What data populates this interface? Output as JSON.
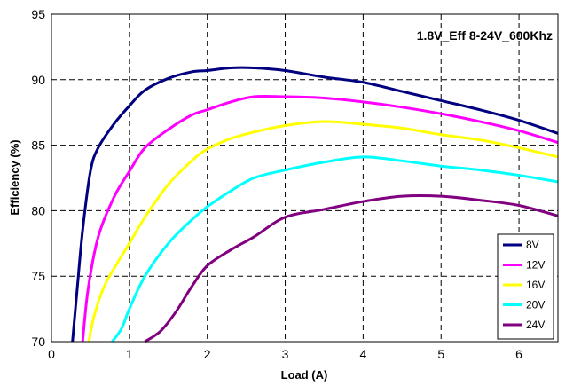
{
  "chart_data": {
    "type": "line",
    "title": "1.8V_Eff 8-24V_600Khz",
    "xlabel": "Load (A)",
    "ylabel": "Efficiency (%)",
    "xlim": [
      0,
      6.5
    ],
    "ylim": [
      70,
      95
    ],
    "x_ticks": [
      "0",
      "1",
      "2",
      "3",
      "4",
      "5",
      "6"
    ],
    "y_ticks": [
      "70",
      "75",
      "80",
      "85",
      "90",
      "95"
    ],
    "grid": true,
    "legend_position": "bottom-right",
    "series": [
      {
        "name": "8V",
        "color": "#000080",
        "points": [
          [
            0.27,
            70
          ],
          [
            0.33,
            74
          ],
          [
            0.4,
            78.5
          ],
          [
            0.5,
            83
          ],
          [
            0.6,
            84.8
          ],
          [
            0.8,
            86.6
          ],
          [
            1.0,
            88
          ],
          [
            1.2,
            89.2
          ],
          [
            1.5,
            90.1
          ],
          [
            1.8,
            90.6
          ],
          [
            2.0,
            90.7
          ],
          [
            2.3,
            90.9
          ],
          [
            2.6,
            90.9
          ],
          [
            3.0,
            90.7
          ],
          [
            3.5,
            90.2
          ],
          [
            4.0,
            89.8
          ],
          [
            4.5,
            89.1
          ],
          [
            5.0,
            88.4
          ],
          [
            5.5,
            87.7
          ],
          [
            6.0,
            86.9
          ],
          [
            6.5,
            85.9
          ]
        ]
      },
      {
        "name": "12V",
        "color": "#ff00ff",
        "points": [
          [
            0.4,
            70
          ],
          [
            0.47,
            74
          ],
          [
            0.6,
            78
          ],
          [
            0.8,
            81
          ],
          [
            1.0,
            83
          ],
          [
            1.2,
            84.8
          ],
          [
            1.5,
            86.2
          ],
          [
            1.8,
            87.3
          ],
          [
            2.0,
            87.7
          ],
          [
            2.3,
            88.3
          ],
          [
            2.6,
            88.7
          ],
          [
            3.0,
            88.7
          ],
          [
            3.5,
            88.6
          ],
          [
            4.0,
            88.3
          ],
          [
            4.5,
            87.9
          ],
          [
            5.0,
            87.4
          ],
          [
            5.5,
            86.8
          ],
          [
            6.0,
            86.1
          ],
          [
            6.5,
            85.2
          ]
        ]
      },
      {
        "name": "16V",
        "color": "#ffff00",
        "points": [
          [
            0.48,
            70
          ],
          [
            0.55,
            72
          ],
          [
            0.7,
            74.5
          ],
          [
            1.0,
            77.5
          ],
          [
            1.2,
            79.5
          ],
          [
            1.5,
            82
          ],
          [
            1.8,
            83.8
          ],
          [
            2.0,
            84.7
          ],
          [
            2.3,
            85.5
          ],
          [
            2.6,
            86
          ],
          [
            3.0,
            86.5
          ],
          [
            3.5,
            86.8
          ],
          [
            4.0,
            86.6
          ],
          [
            4.5,
            86.3
          ],
          [
            5.0,
            85.8
          ],
          [
            5.5,
            85.4
          ],
          [
            6.0,
            84.8
          ],
          [
            6.5,
            84.1
          ]
        ]
      },
      {
        "name": "20V",
        "color": "#00ffff",
        "points": [
          [
            0.78,
            70
          ],
          [
            0.9,
            71
          ],
          [
            1.0,
            72.5
          ],
          [
            1.2,
            75
          ],
          [
            1.5,
            77.5
          ],
          [
            1.8,
            79.3
          ],
          [
            2.0,
            80.3
          ],
          [
            2.3,
            81.5
          ],
          [
            2.6,
            82.5
          ],
          [
            3.0,
            83.1
          ],
          [
            3.5,
            83.7
          ],
          [
            4.0,
            84.1
          ],
          [
            4.5,
            83.8
          ],
          [
            5.0,
            83.4
          ],
          [
            5.5,
            83.1
          ],
          [
            6.0,
            82.7
          ],
          [
            6.5,
            82.2
          ]
        ]
      },
      {
        "name": "24V",
        "color": "#800080",
        "points": [
          [
            1.2,
            70
          ],
          [
            1.4,
            70.8
          ],
          [
            1.6,
            72.3
          ],
          [
            1.8,
            74.2
          ],
          [
            2.0,
            75.8
          ],
          [
            2.3,
            77
          ],
          [
            2.6,
            78
          ],
          [
            3.0,
            79.5
          ],
          [
            3.5,
            80.1
          ],
          [
            4.0,
            80.7
          ],
          [
            4.5,
            81.1
          ],
          [
            5.0,
            81.1
          ],
          [
            5.5,
            80.8
          ],
          [
            6.0,
            80.4
          ],
          [
            6.5,
            79.6
          ]
        ]
      }
    ]
  }
}
